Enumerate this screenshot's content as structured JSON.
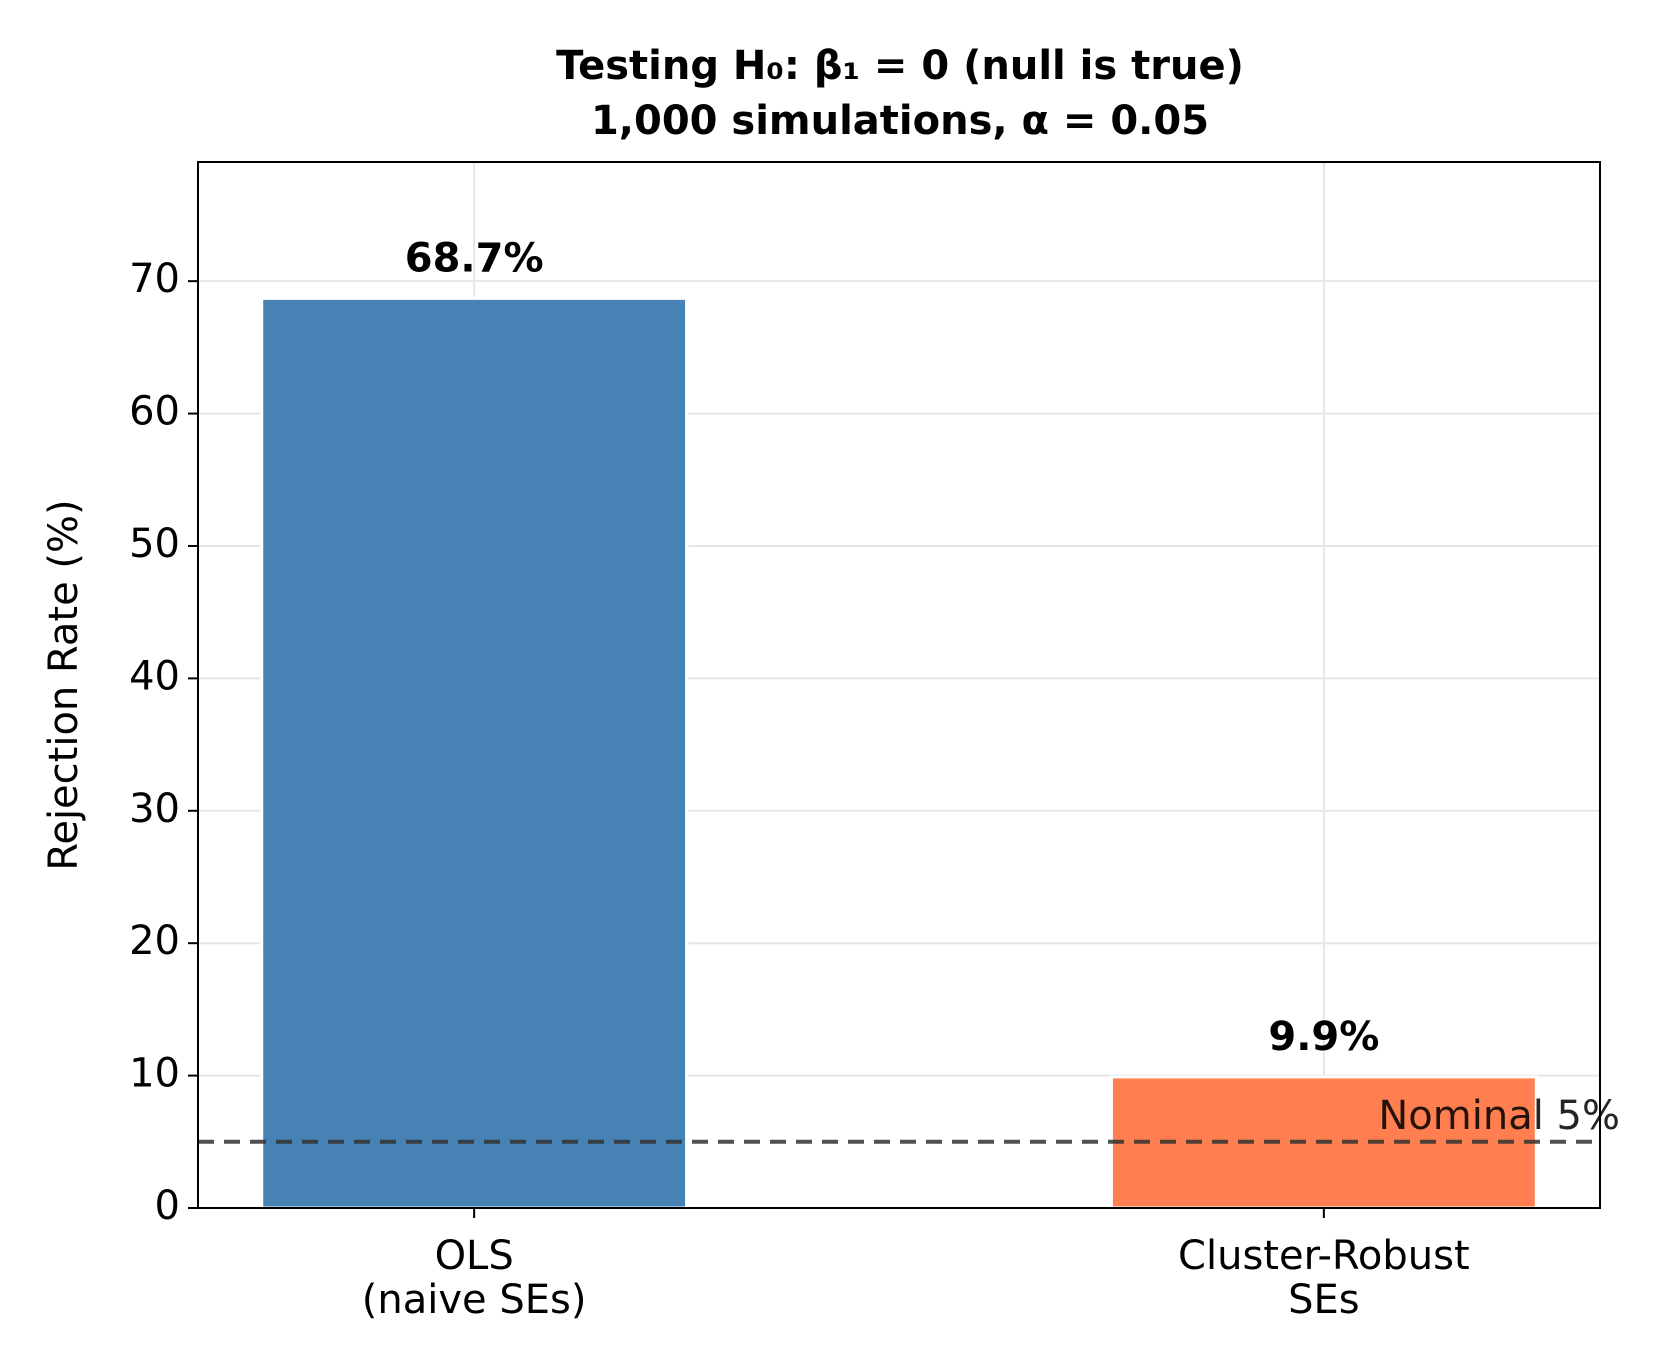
{
  "chart_data": {
    "type": "bar",
    "title": [
      "Testing H₀: β₁ = 0 (null is true)",
      "1,000 simulations, α = 0.05"
    ],
    "ylabel": "Rejection Rate (%)",
    "categories": [
      "OLS\n(naive SEs)",
      "Cluster-Robust\nSEs"
    ],
    "values": [
      68.7,
      9.9
    ],
    "value_labels": [
      "68.7%",
      "9.9%"
    ],
    "colors": [
      "#4682b4",
      "#ff7f50"
    ],
    "ylim": [
      0,
      79
    ],
    "yticks": [
      0,
      10,
      20,
      30,
      40,
      50,
      60,
      70
    ],
    "grid": true,
    "reference_line": {
      "value": 5,
      "label": "Nominal 5%",
      "color": "#333333"
    }
  }
}
